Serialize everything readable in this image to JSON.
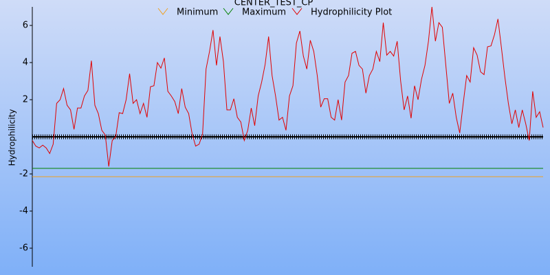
{
  "chart_data": {
    "type": "line",
    "title": "CENTER_TEST_CP",
    "y_label": "Hydrophilicity",
    "ylim": [
      -7,
      7
    ],
    "yticks": [
      -6,
      -4,
      -2,
      2,
      4,
      6
    ],
    "series": [
      {
        "name": "Minimum",
        "color": "#f0a020",
        "value": -2.15
      },
      {
        "name": "Maximum",
        "color": "#008000",
        "value": -1.7
      },
      {
        "name": "Hydrophilicity Plot",
        "color": "#e00000",
        "values": [
          -0.2,
          -0.5,
          -0.6,
          -0.45,
          -0.6,
          -0.9,
          -0.4,
          1.8,
          2.0,
          2.6,
          1.7,
          1.45,
          0.4,
          1.55,
          1.55,
          2.2,
          2.5,
          4.1,
          1.7,
          1.25,
          0.35,
          0.1,
          -1.6,
          -0.2,
          0,
          1.3,
          1.25,
          2.0,
          3.4,
          1.8,
          2.0,
          1.25,
          1.8,
          1.05,
          2.7,
          2.75,
          4.0,
          3.7,
          4.25,
          2.45,
          2.2,
          1.9,
          1.25,
          2.6,
          1.6,
          1.25,
          0.15,
          -0.5,
          -0.4,
          0.15,
          3.65,
          4.6,
          5.75,
          3.85,
          5.4,
          4.05,
          1.45,
          1.45,
          2.05,
          1.05,
          0.8,
          -0.2,
          0.35,
          1.55,
          0.6,
          2.2,
          2.95,
          3.9,
          5.4,
          3.3,
          2.2,
          0.9,
          1.05,
          0.35,
          2.2,
          2.75,
          5.05,
          5.7,
          4.35,
          3.65,
          5.2,
          4.6,
          3.3,
          1.6,
          2.05,
          2.05,
          1.05,
          0.9,
          2.0,
          0.9,
          2.95,
          3.3,
          4.5,
          4.6,
          3.85,
          3.65,
          2.35,
          3.3,
          3.65,
          4.6,
          4.05,
          6.15,
          4.4,
          4.6,
          4.35,
          5.15,
          3.0,
          1.45,
          2.2,
          1.0,
          2.75,
          2.0,
          3.1,
          3.85,
          5.15,
          7.0,
          5.15,
          6.15,
          5.9,
          3.85,
          1.8,
          2.35,
          1.05,
          0.2,
          1.8,
          3.3,
          2.95,
          4.8,
          4.4,
          3.5,
          3.35,
          4.85,
          4.9,
          5.5,
          6.35,
          4.8,
          3.2,
          1.8,
          0.7,
          1.45,
          0.5,
          1.45,
          0.7,
          -0.2,
          2.45,
          1.05,
          1.35,
          0.5
        ]
      }
    ]
  }
}
